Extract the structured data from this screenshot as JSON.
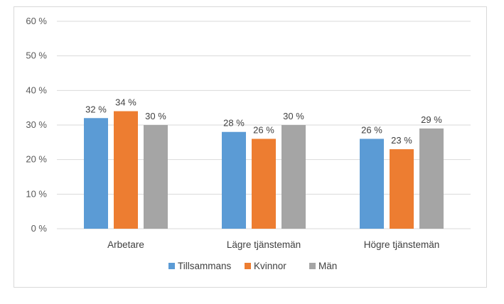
{
  "chart_data": {
    "type": "bar",
    "title": "",
    "xlabel": "",
    "ylabel": "",
    "categories": [
      "Arbetare",
      "Lägre tjänstemän",
      "Högre tjänstemän"
    ],
    "series": [
      {
        "name": "Tillsammans",
        "color": "#5b9bd5",
        "values": [
          32,
          28,
          26
        ],
        "labels": [
          "32 %",
          "28 %",
          "26 %"
        ]
      },
      {
        "name": "Kvinnor",
        "color": "#ed7d31",
        "values": [
          34,
          26,
          23
        ],
        "labels": [
          "34 %",
          "26 %",
          "23 %"
        ]
      },
      {
        "name": "Män",
        "color": "#a5a5a5",
        "values": [
          30,
          30,
          29
        ],
        "labels": [
          "30 %",
          "30 %",
          "29 %"
        ]
      }
    ],
    "ylim": [
      0,
      60
    ],
    "yticks": [
      0,
      10,
      20,
      30,
      40,
      50,
      60
    ],
    "ytick_labels": [
      "0 %",
      "10 %",
      "20 %",
      "30 %",
      "40 %",
      "50 %",
      "60 %"
    ],
    "grid": true,
    "legend_position": "bottom"
  }
}
